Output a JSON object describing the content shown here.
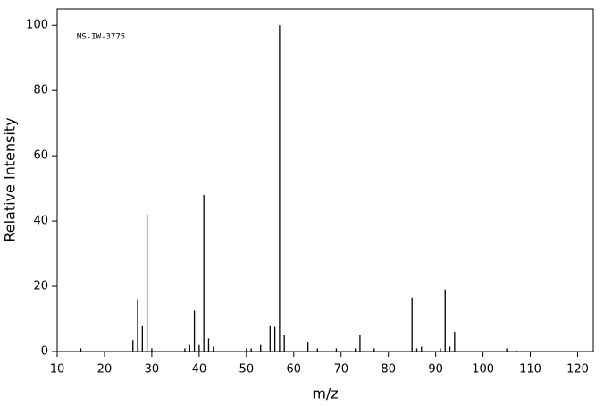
{
  "chart_data": {
    "type": "stem",
    "annotation": "MS-IW-3775",
    "x_label": "m/z",
    "y_label": "Relative Intensity",
    "x": [
      15,
      26,
      27,
      28,
      29,
      30,
      37,
      38,
      39,
      40,
      41,
      42,
      43,
      50,
      51,
      53,
      55,
      56,
      57,
      58,
      63,
      65,
      69,
      73,
      74,
      77,
      85,
      86,
      87,
      91,
      92,
      93,
      94,
      105,
      107
    ],
    "values": [
      1,
      3.5,
      16,
      8,
      42,
      1,
      1,
      2,
      12.5,
      2,
      48,
      4,
      1.5,
      1,
      1,
      2,
      8,
      7.5,
      100,
      5,
      3,
      1,
      1,
      1,
      5,
      1,
      16.5,
      1,
      1.5,
      1,
      19,
      1.5,
      6,
      1,
      0.5
    ],
    "color": "#000000",
    "xlim": [
      10,
      123.3
    ],
    "ylim": [
      0,
      105
    ],
    "xticks": [
      10,
      20,
      30,
      40,
      50,
      60,
      70,
      80,
      90,
      100,
      110,
      120
    ],
    "yticks": [
      0,
      20,
      40,
      60,
      80,
      100
    ]
  }
}
